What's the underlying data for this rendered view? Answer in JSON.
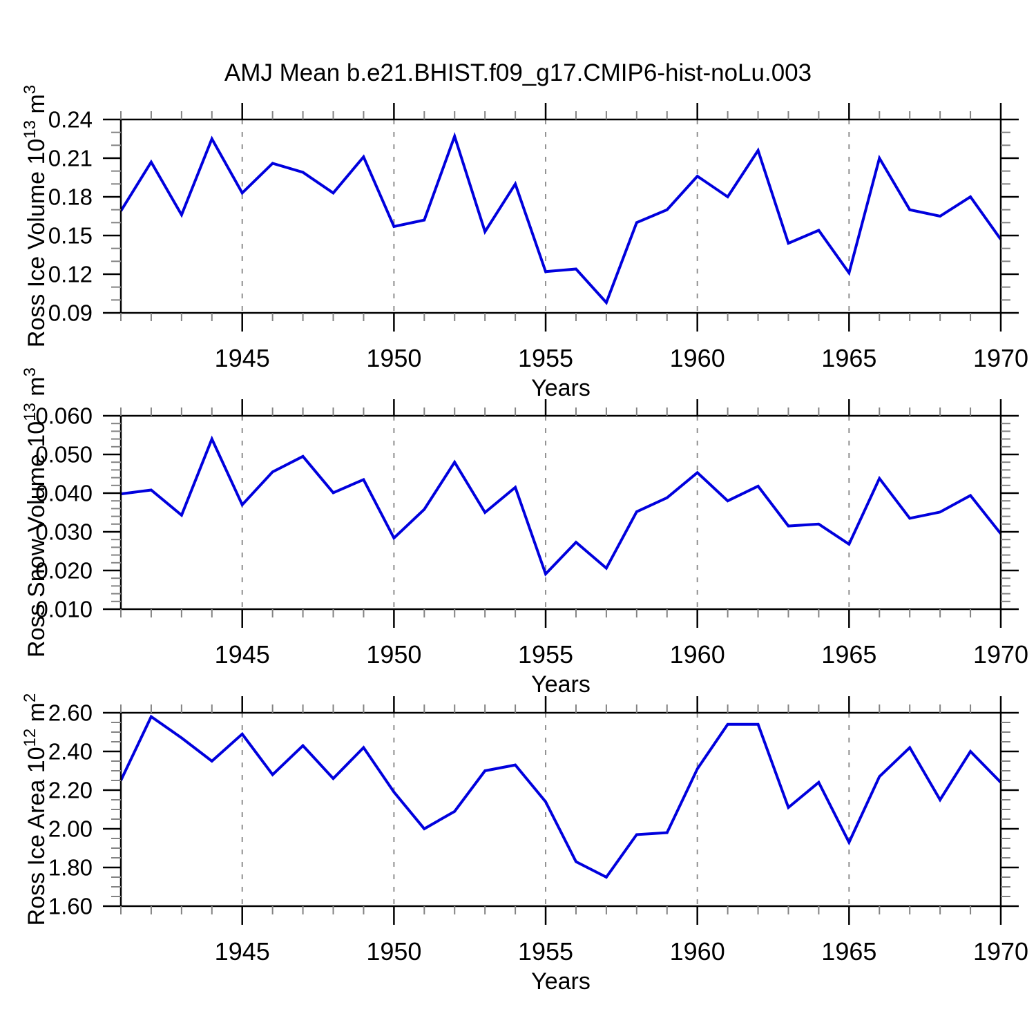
{
  "title": "AMJ Mean b.e21.BHIST.f09_g17.CMIP6-hist-noLu.003",
  "colors": {
    "line": "#0000dd",
    "axis": "#000000",
    "major_tick": "#000000",
    "minor_tick": "#828282",
    "gridline": "#909090",
    "background": "#ffffff",
    "text": "#000000"
  },
  "x_axis": {
    "label": "Years",
    "range": [
      1941,
      1970
    ],
    "major_tick_values": [
      1945,
      1950,
      1955,
      1960,
      1965,
      1970
    ],
    "major_tick_labels": [
      "1945",
      "1950",
      "1955",
      "1960",
      "1965",
      "1970"
    ],
    "minor_tick_step": 1,
    "gridline_values": [
      1945,
      1950,
      1955,
      1960,
      1965
    ]
  },
  "chart_data": [
    {
      "type": "line",
      "name": "ross-ice-volume",
      "ylabel": "Ross Ice Volume 10^13 m^3",
      "ylabel_parts": [
        "Ross Ice Volume 10",
        "13",
        " m",
        "3"
      ],
      "ylim": [
        0.09,
        0.24
      ],
      "ytick_values": [
        0.09,
        0.12,
        0.15,
        0.18,
        0.21,
        0.24
      ],
      "ytick_labels": [
        "0.09",
        "0.12",
        "0.15",
        "0.18",
        "0.21",
        "0.24"
      ],
      "yminor_step": 0.01,
      "x": [
        1941,
        1942,
        1943,
        1944,
        1945,
        1946,
        1947,
        1948,
        1949,
        1950,
        1951,
        1952,
        1953,
        1954,
        1955,
        1956,
        1957,
        1958,
        1959,
        1960,
        1961,
        1962,
        1963,
        1964,
        1965,
        1966,
        1967,
        1968,
        1969,
        1970
      ],
      "values": [
        0.169,
        0.207,
        0.166,
        0.225,
        0.183,
        0.206,
        0.199,
        0.183,
        0.211,
        0.157,
        0.162,
        0.227,
        0.153,
        0.19,
        0.122,
        0.124,
        0.098,
        0.16,
        0.17,
        0.196,
        0.18,
        0.216,
        0.144,
        0.154,
        0.121,
        0.21,
        0.17,
        0.165,
        0.18,
        0.147
      ]
    },
    {
      "type": "line",
      "name": "ross-snow-volume",
      "ylabel": "Ross Snow Volume 10^13 m^3",
      "ylabel_parts": [
        "Ross Snow Volume 10",
        "13",
        " m",
        "3"
      ],
      "ylim": [
        0.01,
        0.06
      ],
      "ytick_values": [
        0.01,
        0.02,
        0.03,
        0.04,
        0.05,
        0.06
      ],
      "ytick_labels": [
        "0.010",
        "0.020",
        "0.030",
        "0.040",
        "0.050",
        "0.060"
      ],
      "yminor_step": 0.002,
      "x": [
        1941,
        1942,
        1943,
        1944,
        1945,
        1946,
        1947,
        1948,
        1949,
        1950,
        1951,
        1952,
        1953,
        1954,
        1955,
        1956,
        1957,
        1958,
        1959,
        1960,
        1961,
        1962,
        1963,
        1964,
        1965,
        1966,
        1967,
        1968,
        1969,
        1970
      ],
      "values": [
        0.0398,
        0.0408,
        0.0343,
        0.054,
        0.037,
        0.0455,
        0.0495,
        0.0401,
        0.0435,
        0.0284,
        0.0358,
        0.048,
        0.035,
        0.0415,
        0.0191,
        0.0273,
        0.0206,
        0.0352,
        0.0388,
        0.0453,
        0.038,
        0.0418,
        0.0315,
        0.032,
        0.0268,
        0.0438,
        0.0335,
        0.0351,
        0.0394,
        0.0295
      ]
    },
    {
      "type": "line",
      "name": "ross-ice-area",
      "ylabel": "Ross Ice Area 10^12 m^2",
      "ylabel_parts": [
        "Ross Ice Area 10",
        "12",
        " m",
        "2"
      ],
      "ylim": [
        1.6,
        2.6
      ],
      "ytick_values": [
        1.6,
        1.8,
        2.0,
        2.2,
        2.4,
        2.6
      ],
      "ytick_labels": [
        "1.60",
        "1.80",
        "2.00",
        "2.20",
        "2.40",
        "2.60"
      ],
      "yminor_step": 0.05,
      "x": [
        1941,
        1942,
        1943,
        1944,
        1945,
        1946,
        1947,
        1948,
        1949,
        1950,
        1951,
        1952,
        1953,
        1954,
        1955,
        1956,
        1957,
        1958,
        1959,
        1960,
        1961,
        1962,
        1963,
        1964,
        1965,
        1966,
        1967,
        1968,
        1969,
        1970
      ],
      "values": [
        2.25,
        2.58,
        2.47,
        2.35,
        2.49,
        2.28,
        2.43,
        2.26,
        2.42,
        2.19,
        2.0,
        2.09,
        2.3,
        2.33,
        2.14,
        1.83,
        1.75,
        1.97,
        1.98,
        2.31,
        2.54,
        2.54,
        2.11,
        2.24,
        1.93,
        2.27,
        2.42,
        2.15,
        2.4,
        2.24
      ]
    }
  ]
}
